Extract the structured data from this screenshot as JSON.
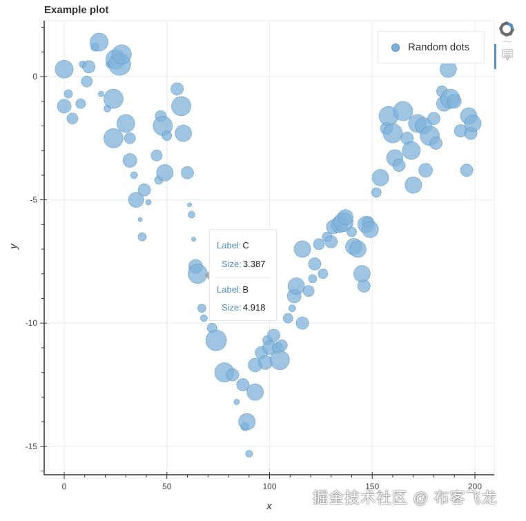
{
  "plot": {
    "title": "Example plot",
    "legend_label": "Random dots",
    "x_axis_label": "x",
    "y_axis_label": "y"
  },
  "toolbar": {
    "logo_icon": "bokeh-logo-icon",
    "tools": [
      {
        "name": "hover-tool",
        "active": true
      }
    ]
  },
  "tooltip": {
    "entries": [
      {
        "label_key": "Label:",
        "label_value": "C",
        "size_key": "Size:",
        "size_value": "3.387"
      },
      {
        "label_key": "Label:",
        "label_value": "B",
        "size_key": "Size:",
        "size_value": "4.918"
      }
    ]
  },
  "watermark": "掘金技术社区 @ 布客飞龙",
  "colors": {
    "fill": "#7fb1d9",
    "stroke": "#4f8fc2",
    "grid": "#e6ebee",
    "axis": "#333333"
  },
  "chart_data": {
    "type": "scatter",
    "title": "Example plot",
    "xlabel": "x",
    "ylabel": "y",
    "x_ticks": [
      "0",
      "50",
      "100",
      "150",
      "200"
    ],
    "y_ticks": [
      "0",
      "-5",
      "-10",
      "-15"
    ],
    "xlim": [
      -10,
      210
    ],
    "ylim": [
      -16,
      2.2
    ],
    "grid": true,
    "legend": {
      "entries": [
        "Random dots"
      ],
      "position": "top-right"
    },
    "series": [
      {
        "name": "Random dots",
        "marker": "circle",
        "points": [
          {
            "x": 0,
            "y": 0.3,
            "r": 13
          },
          {
            "x": 0,
            "y": -1.2,
            "r": 10
          },
          {
            "x": 2,
            "y": -0.7,
            "r": 6
          },
          {
            "x": 4,
            "y": -1.7,
            "r": 8
          },
          {
            "x": 8,
            "y": -1.1,
            "r": 7
          },
          {
            "x": 9,
            "y": 0.5,
            "r": 5
          },
          {
            "x": 11,
            "y": -0.2,
            "r": 8
          },
          {
            "x": 12,
            "y": 0.4,
            "r": 9
          },
          {
            "x": 15,
            "y": 1.2,
            "r": 6
          },
          {
            "x": 17,
            "y": 1.4,
            "r": 13
          },
          {
            "x": 18,
            "y": -0.7,
            "r": 4
          },
          {
            "x": 21,
            "y": -1.3,
            "r": 5
          },
          {
            "x": 22,
            "y": 0.5,
            "r": 5
          },
          {
            "x": 24,
            "y": -0.9,
            "r": 14
          },
          {
            "x": 25,
            "y": 0.7,
            "r": 14
          },
          {
            "x": 27,
            "y": 0.5,
            "r": 16
          },
          {
            "x": 28,
            "y": 0.9,
            "r": 14
          },
          {
            "x": 24,
            "y": -2.5,
            "r": 14
          },
          {
            "x": 30,
            "y": -1.9,
            "r": 13
          },
          {
            "x": 32,
            "y": -2.5,
            "r": 8
          },
          {
            "x": 32,
            "y": -3.4,
            "r": 10
          },
          {
            "x": 34,
            "y": -4.0,
            "r": 5
          },
          {
            "x": 35,
            "y": -5.0,
            "r": 11
          },
          {
            "x": 37,
            "y": -5.8,
            "r": 3
          },
          {
            "x": 38,
            "y": -6.5,
            "r": 6
          },
          {
            "x": 39,
            "y": -4.6,
            "r": 9
          },
          {
            "x": 41,
            "y": -5.1,
            "r": 4
          },
          {
            "x": 45,
            "y": -3.2,
            "r": 8
          },
          {
            "x": 46,
            "y": -4.2,
            "r": 6
          },
          {
            "x": 47,
            "y": -1.6,
            "r": 8
          },
          {
            "x": 48,
            "y": -2.0,
            "r": 14
          },
          {
            "x": 49,
            "y": -3.9,
            "r": 12
          },
          {
            "x": 50,
            "y": -2.4,
            "r": 7
          },
          {
            "x": 55,
            "y": -0.5,
            "r": 9
          },
          {
            "x": 57,
            "y": -1.2,
            "r": 14
          },
          {
            "x": 58,
            "y": -2.3,
            "r": 12
          },
          {
            "x": 60,
            "y": -3.9,
            "r": 9
          },
          {
            "x": 61,
            "y": -5.2,
            "r": 3
          },
          {
            "x": 62,
            "y": -5.6,
            "r": 5
          },
          {
            "x": 63,
            "y": -6.6,
            "r": 3
          },
          {
            "x": 64,
            "y": -7.7,
            "r": 10
          },
          {
            "x": 65,
            "y": -8.0,
            "r": 14
          },
          {
            "x": 67,
            "y": -9.4,
            "r": 6
          },
          {
            "x": 68,
            "y": -9.8,
            "r": 5
          },
          {
            "x": 72,
            "y": -10.2,
            "r": 7
          },
          {
            "x": 74,
            "y": -10.7,
            "r": 15
          },
          {
            "x": 78,
            "y": -12.0,
            "r": 14
          },
          {
            "x": 82,
            "y": -12.1,
            "r": 9
          },
          {
            "x": 84,
            "y": -13.2,
            "r": 4
          },
          {
            "x": 87,
            "y": -12.5,
            "r": 9
          },
          {
            "x": 88,
            "y": -14.2,
            "r": 6
          },
          {
            "x": 89,
            "y": -14.0,
            "r": 12
          },
          {
            "x": 90,
            "y": -15.3,
            "r": 5
          },
          {
            "x": 93,
            "y": -11.7,
            "r": 10
          },
          {
            "x": 93,
            "y": -12.8,
            "r": 12
          },
          {
            "x": 96,
            "y": -11.2,
            "r": 9
          },
          {
            "x": 98,
            "y": -11.6,
            "r": 10
          },
          {
            "x": 99,
            "y": -10.7,
            "r": 7
          },
          {
            "x": 100,
            "y": -11.0,
            "r": 10
          },
          {
            "x": 102,
            "y": -10.5,
            "r": 9
          },
          {
            "x": 104,
            "y": -11.0,
            "r": 8
          },
          {
            "x": 105,
            "y": -11.5,
            "r": 14
          },
          {
            "x": 106,
            "y": -10.9,
            "r": 8
          },
          {
            "x": 109,
            "y": -9.8,
            "r": 7
          },
          {
            "x": 111,
            "y": -9.4,
            "r": 5
          },
          {
            "x": 112,
            "y": -8.9,
            "r": 10
          },
          {
            "x": 113,
            "y": -8.5,
            "r": 12
          },
          {
            "x": 116,
            "y": -10.0,
            "r": 9
          },
          {
            "x": 116,
            "y": -7.0,
            "r": 12
          },
          {
            "x": 119,
            "y": -8.7,
            "r": 8
          },
          {
            "x": 121,
            "y": -8.2,
            "r": 6
          },
          {
            "x": 122,
            "y": -7.6,
            "r": 9
          },
          {
            "x": 124,
            "y": -6.8,
            "r": 8
          },
          {
            "x": 126,
            "y": -8.0,
            "r": 7
          },
          {
            "x": 128,
            "y": -6.5,
            "r": 7
          },
          {
            "x": 130,
            "y": -6.7,
            "r": 9
          },
          {
            "x": 131,
            "y": -6.1,
            "r": 10
          },
          {
            "x": 134,
            "y": -6.0,
            "r": 12
          },
          {
            "x": 136,
            "y": -5.9,
            "r": 14
          },
          {
            "x": 137,
            "y": -5.7,
            "r": 11
          },
          {
            "x": 140,
            "y": -6.3,
            "r": 7
          },
          {
            "x": 141,
            "y": -6.9,
            "r": 12
          },
          {
            "x": 143,
            "y": -7.0,
            "r": 12
          },
          {
            "x": 145,
            "y": -8.0,
            "r": 12
          },
          {
            "x": 146,
            "y": -8.5,
            "r": 9
          },
          {
            "x": 147,
            "y": -6.0,
            "r": 12
          },
          {
            "x": 148,
            "y": -5.9,
            "r": 8
          },
          {
            "x": 149,
            "y": -6.2,
            "r": 12
          },
          {
            "x": 152,
            "y": -4.7,
            "r": 7
          },
          {
            "x": 154,
            "y": -4.1,
            "r": 12
          },
          {
            "x": 157,
            "y": -2.1,
            "r": 9
          },
          {
            "x": 158,
            "y": -1.6,
            "r": 14
          },
          {
            "x": 160,
            "y": -2.3,
            "r": 14
          },
          {
            "x": 161,
            "y": -3.3,
            "r": 12
          },
          {
            "x": 163,
            "y": -3.6,
            "r": 9
          },
          {
            "x": 165,
            "y": -1.4,
            "r": 14
          },
          {
            "x": 167,
            "y": -2.5,
            "r": 9
          },
          {
            "x": 169,
            "y": -3.0,
            "r": 13
          },
          {
            "x": 170,
            "y": -4.4,
            "r": 12
          },
          {
            "x": 172,
            "y": -1.9,
            "r": 13
          },
          {
            "x": 175,
            "y": -2.0,
            "r": 12
          },
          {
            "x": 176,
            "y": -3.8,
            "r": 10
          },
          {
            "x": 178,
            "y": -2.4,
            "r": 14
          },
          {
            "x": 180,
            "y": -1.7,
            "r": 9
          },
          {
            "x": 181,
            "y": -2.7,
            "r": 9
          },
          {
            "x": 184,
            "y": -0.6,
            "r": 8
          },
          {
            "x": 185,
            "y": -1.1,
            "r": 11
          },
          {
            "x": 187,
            "y": 0.3,
            "r": 12
          },
          {
            "x": 188,
            "y": -0.9,
            "r": 14
          },
          {
            "x": 190,
            "y": -1.0,
            "r": 10
          },
          {
            "x": 193,
            "y": -2.2,
            "r": 9
          },
          {
            "x": 196,
            "y": -3.8,
            "r": 9
          },
          {
            "x": 197,
            "y": -1.6,
            "r": 12
          },
          {
            "x": 198,
            "y": -2.3,
            "r": 9
          },
          {
            "x": 199,
            "y": -1.9,
            "r": 12
          }
        ]
      }
    ]
  }
}
